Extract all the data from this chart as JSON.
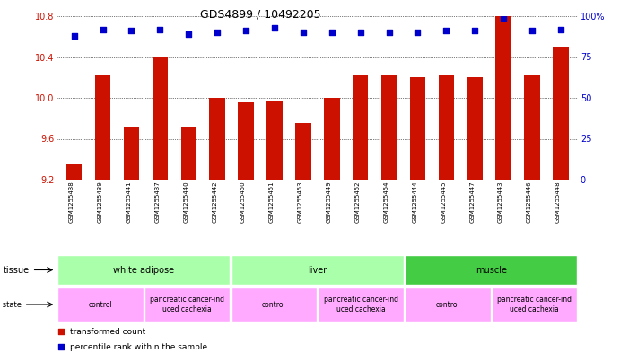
{
  "title": "GDS4899 / 10492205",
  "samples": [
    "GSM1255438",
    "GSM1255439",
    "GSM1255441",
    "GSM1255437",
    "GSM1255440",
    "GSM1255442",
    "GSM1255450",
    "GSM1255451",
    "GSM1255453",
    "GSM1255449",
    "GSM1255452",
    "GSM1255454",
    "GSM1255444",
    "GSM1255445",
    "GSM1255447",
    "GSM1255443",
    "GSM1255446",
    "GSM1255448"
  ],
  "transformed_count": [
    9.35,
    10.22,
    9.72,
    10.4,
    9.72,
    10.0,
    9.96,
    9.97,
    9.75,
    10.0,
    10.22,
    10.22,
    10.2,
    10.22,
    10.2,
    10.8,
    10.22,
    10.5
  ],
  "percentile_rank": [
    88,
    92,
    91,
    92,
    89,
    90,
    91,
    93,
    90,
    90,
    90,
    90,
    90,
    91,
    91,
    99,
    91,
    92
  ],
  "bar_color": "#cc1100",
  "dot_color": "#0000cc",
  "ylim_left": [
    9.2,
    10.8
  ],
  "ylim_right": [
    0,
    100
  ],
  "yticks_left": [
    9.2,
    9.6,
    10.0,
    10.4,
    10.8
  ],
  "yticks_right": [
    0,
    25,
    50,
    75,
    100
  ],
  "tissue_groups": [
    {
      "label": "white adipose",
      "start": 0,
      "end": 6,
      "color": "#aaffaa"
    },
    {
      "label": "liver",
      "start": 6,
      "end": 12,
      "color": "#aaffaa"
    },
    {
      "label": "muscle",
      "start": 12,
      "end": 18,
      "color": "#44cc44"
    }
  ],
  "disease_groups": [
    {
      "label": "control",
      "start": 0,
      "end": 3,
      "color": "#ffaaff"
    },
    {
      "label": "pancreatic cancer-ind\nuced cachexia",
      "start": 3,
      "end": 6,
      "color": "#ffaaff"
    },
    {
      "label": "control",
      "start": 6,
      "end": 9,
      "color": "#ffaaff"
    },
    {
      "label": "pancreatic cancer-ind\nuced cachexia",
      "start": 9,
      "end": 12,
      "color": "#ffaaff"
    },
    {
      "label": "control",
      "start": 12,
      "end": 15,
      "color": "#ffaaff"
    },
    {
      "label": "pancreatic cancer-ind\nuced cachexia",
      "start": 15,
      "end": 18,
      "color": "#ffaaff"
    }
  ]
}
